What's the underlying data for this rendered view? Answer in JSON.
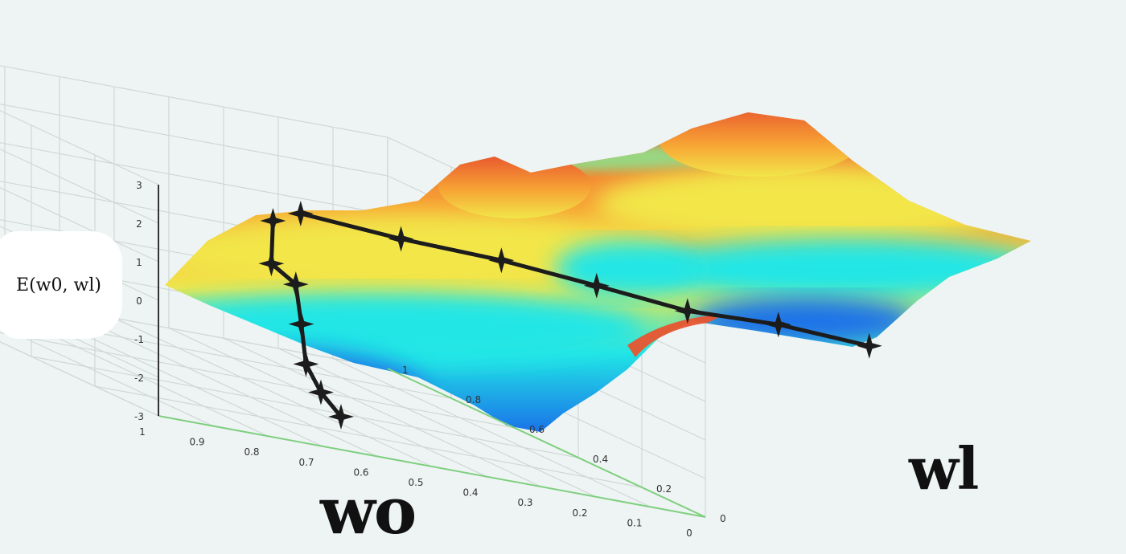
{
  "chart_data": {
    "type": "surface",
    "xlabel": "wo",
    "ylabel": "wl",
    "zlabel": "E(w0,  wl)",
    "x_ticks": [
      "1",
      "0.9",
      "0.8",
      "0.7",
      "0.6",
      "0.5",
      "0.4",
      "0.3",
      "0.2",
      "0.1",
      "0"
    ],
    "y_ticks": [
      "0",
      "0.2",
      "0.4",
      "0.6",
      "0.8",
      "1"
    ],
    "z_ticks": [
      "3",
      "2",
      "1",
      "0",
      "-1",
      "-2",
      "-3"
    ],
    "xlim": [
      0,
      1
    ],
    "ylim": [
      0,
      1
    ],
    "zlim": [
      -3,
      3
    ],
    "grid": true,
    "colormap": [
      "#1a73e8",
      "#22e6e6",
      "#f2e64a",
      "#f7a334",
      "#e8552f"
    ],
    "surface_features": [
      {
        "kind": "peak",
        "w0": 0.5,
        "w1": 0.85,
        "E": 2.5
      },
      {
        "kind": "peak",
        "w0": 0.25,
        "w1": 0.35,
        "E": 2.6
      },
      {
        "kind": "valley",
        "w0": 0.7,
        "w1": 0.15,
        "E": -2.6
      }
    ],
    "series": [
      {
        "points": [
          {
            "w0": 0.52,
            "w1": 0.8,
            "E": 2.1
          },
          {
            "w0": 0.54,
            "w1": 0.76,
            "E": 1.0
          },
          {
            "w0": 0.56,
            "w1": 0.66,
            "E": 0.5
          },
          {
            "w0": 0.6,
            "w1": 0.56,
            "E": -0.5
          },
          {
            "w0": 0.65,
            "w1": 0.44,
            "E": -1.5
          },
          {
            "w0": 0.68,
            "w1": 0.34,
            "E": -2.2
          },
          {
            "w0": 0.7,
            "w1": 0.25,
            "E": -2.8
          }
        ]
      },
      {
        "points": [
          {
            "w0": 0.5,
            "w1": 0.78,
            "E": 2.3
          },
          {
            "w0": 0.44,
            "w1": 0.68,
            "E": 1.7
          },
          {
            "w0": 0.38,
            "w1": 0.58,
            "E": 1.2
          },
          {
            "w0": 0.33,
            "w1": 0.47,
            "E": 0.6
          },
          {
            "w0": 0.28,
            "w1": 0.37,
            "E": 0.0
          },
          {
            "w0": 0.23,
            "w1": 0.27,
            "E": -0.3
          },
          {
            "w0": 0.18,
            "w1": 0.17,
            "E": -0.8
          }
        ]
      }
    ]
  }
}
